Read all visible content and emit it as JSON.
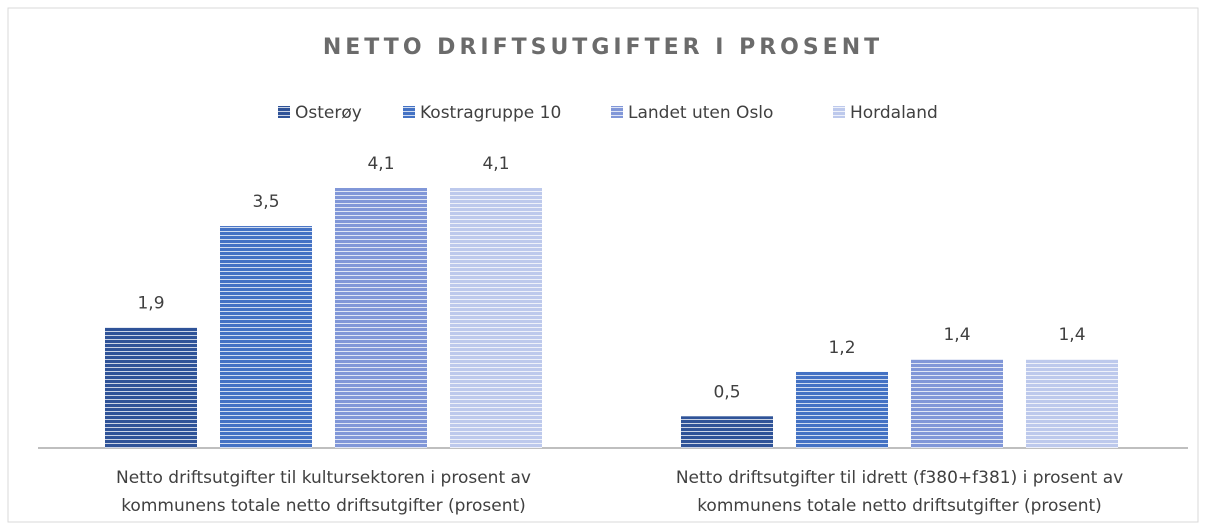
{
  "chart_data": {
    "type": "bar",
    "title": "NETTO DRIFTSUTGIFTER I PROSENT",
    "categories": [
      "Netto driftsutgifter til kultursektoren i prosent av kommunens totale netto driftsutgifter (prosent)",
      "Netto driftsutgifter til idrett (f380+f381) i prosent av kommunens totale netto driftsutgifter (prosent)"
    ],
    "series": [
      {
        "name": "Osterøy",
        "color": "#2f5398",
        "values": [
          1.9,
          0.5
        ],
        "value_labels": [
          "1,9",
          "0,5"
        ]
      },
      {
        "name": "Kostragruppe 10",
        "color": "#4472c4",
        "values": [
          3.5,
          1.2
        ],
        "value_labels": [
          "3,5",
          "1,2"
        ]
      },
      {
        "name": "Landet uten Oslo",
        "color": "#8197d8",
        "values": [
          4.1,
          1.4
        ],
        "value_labels": [
          "4,1",
          "1,4"
        ]
      },
      {
        "name": "Hordaland",
        "color": "#bdc9ec",
        "values": [
          4.1,
          1.4
        ],
        "value_labels": [
          "4,1",
          "1,4"
        ]
      }
    ]
  }
}
